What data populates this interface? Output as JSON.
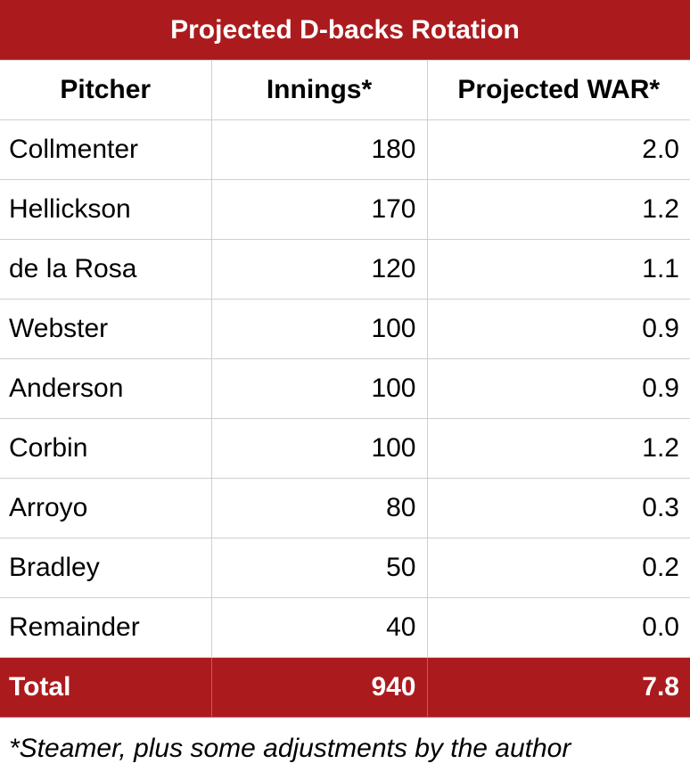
{
  "title": "Projected D-backs Rotation",
  "headers": {
    "pitcher": "Pitcher",
    "innings": "Innings*",
    "war": "Projected WAR*"
  },
  "rows": [
    {
      "pitcher": "Collmenter",
      "innings": "180",
      "war": "2.0"
    },
    {
      "pitcher": "Hellickson",
      "innings": "170",
      "war": "1.2"
    },
    {
      "pitcher": "de la Rosa",
      "innings": "120",
      "war": "1.1"
    },
    {
      "pitcher": "Webster",
      "innings": "100",
      "war": "0.9"
    },
    {
      "pitcher": "Anderson",
      "innings": "100",
      "war": "0.9"
    },
    {
      "pitcher": "Corbin",
      "innings": "100",
      "war": "1.2"
    },
    {
      "pitcher": "Arroyo",
      "innings": "80",
      "war": "0.3"
    },
    {
      "pitcher": "Bradley",
      "innings": "50",
      "war": "0.2"
    },
    {
      "pitcher": "Remainder",
      "innings": "40",
      "war": "0.0"
    }
  ],
  "total": {
    "label": "Total",
    "innings": "940",
    "war": "7.8"
  },
  "footnote": "*Steamer, plus some adjustments by the author",
  "colors": {
    "header_red": "#ab1b1d",
    "grid": "#cfcfcf"
  }
}
